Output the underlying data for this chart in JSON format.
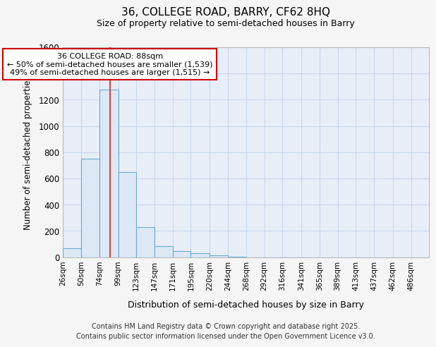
{
  "title": "36, COLLEGE ROAD, BARRY, CF62 8HQ",
  "subtitle": "Size of property relative to semi-detached houses in Barry",
  "xlabel": "Distribution of semi-detached houses by size in Barry",
  "ylabel": "Number of semi-detached properties",
  "footnote1": "Contains HM Land Registry data © Crown copyright and database right 2025.",
  "footnote2": "Contains public sector information licensed under the Open Government Licence v3.0.",
  "bar_edges": [
    26,
    50,
    74,
    99,
    123,
    147,
    171,
    195,
    220,
    244,
    268,
    292,
    316,
    341,
    365,
    389,
    413,
    437,
    462,
    486,
    510
  ],
  "bar_heights": [
    65,
    750,
    1280,
    650,
    230,
    85,
    45,
    30,
    15,
    5,
    0,
    0,
    0,
    0,
    0,
    0,
    0,
    0,
    0,
    0
  ],
  "bar_color": "#dce8f5",
  "bar_edge_color": "#6aaad4",
  "property_size": 88,
  "vline_color": "#cc2222",
  "annotation_text_line1": "36 COLLEGE ROAD: 88sqm",
  "annotation_text_line2": "← 50% of semi-detached houses are smaller (1,539)",
  "annotation_text_line3": "49% of semi-detached houses are larger (1,515) →",
  "annotation_box_color": "#ffffff",
  "annotation_box_edge": "#cc0000",
  "ylim": [
    0,
    1600
  ],
  "yticks": [
    0,
    200,
    400,
    600,
    800,
    1000,
    1200,
    1400,
    1600
  ],
  "grid_color": "#c8d8ee",
  "background_color": "#e8eef8",
  "fig_background": "#f5f5f5"
}
